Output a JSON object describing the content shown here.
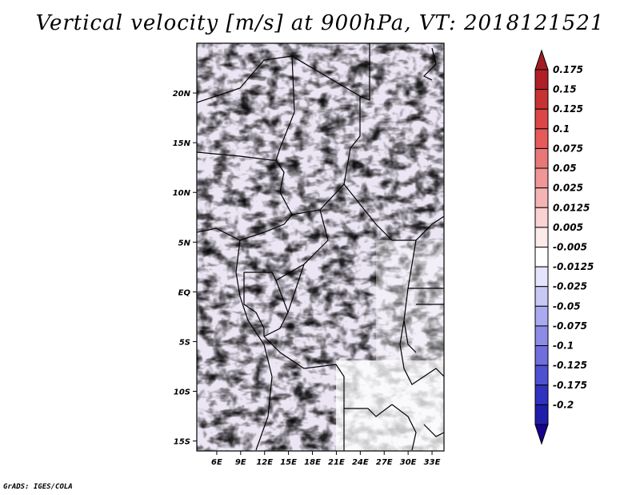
{
  "title": "Vertical velocity [m/s] at 900hPa, VT: 2018121521",
  "footer": "GrADS: IGES/COLA",
  "map": {
    "lat_range": [
      -16,
      25
    ],
    "lon_range": [
      3.5,
      34.5
    ],
    "lat_labels": [
      {
        "value": 20,
        "label": "20N"
      },
      {
        "value": 15,
        "label": "15N"
      },
      {
        "value": 10,
        "label": "10N"
      },
      {
        "value": 5,
        "label": "5N"
      },
      {
        "value": 0,
        "label": "EQ"
      },
      {
        "value": -5,
        "label": "5S"
      },
      {
        "value": -10,
        "label": "10S"
      },
      {
        "value": -15,
        "label": "15S"
      }
    ],
    "lon_labels": [
      {
        "value": 6,
        "label": "6E"
      },
      {
        "value": 9,
        "label": "9E"
      },
      {
        "value": 12,
        "label": "12E"
      },
      {
        "value": 15,
        "label": "15E"
      },
      {
        "value": 18,
        "label": "18E"
      },
      {
        "value": 21,
        "label": "21E"
      },
      {
        "value": 24,
        "label": "24E"
      },
      {
        "value": 27,
        "label": "27E"
      },
      {
        "value": 30,
        "label": "30E"
      },
      {
        "value": 33,
        "label": "33E"
      }
    ]
  },
  "colorbar": {
    "levels": [
      {
        "label": "0.175",
        "color": "#b01e28"
      },
      {
        "label": "0.15",
        "color": "#c83232"
      },
      {
        "label": "0.125",
        "color": "#dc4646"
      },
      {
        "label": "0.1",
        "color": "#e65a5a"
      },
      {
        "label": "0.075",
        "color": "#e87878"
      },
      {
        "label": "0.05",
        "color": "#f09696"
      },
      {
        "label": "0.025",
        "color": "#f5b4b4"
      },
      {
        "label": "0.0125",
        "color": "#fad2d2"
      },
      {
        "label": "0.005",
        "color": "#fdeaea"
      },
      {
        "label": "-0.005",
        "color": "#ffffff"
      },
      {
        "label": "-0.0125",
        "color": "#e4e4fa"
      },
      {
        "label": "-0.025",
        "color": "#c8c8f5"
      },
      {
        "label": "-0.05",
        "color": "#aaaaf0"
      },
      {
        "label": "-0.075",
        "color": "#8c8ce6"
      },
      {
        "label": "-0.1",
        "color": "#6e6edc"
      },
      {
        "label": "-0.125",
        "color": "#5050d2"
      },
      {
        "label": "-0.175",
        "color": "#3232c0"
      },
      {
        "label": "-0.2",
        "color": "#1e1eaa"
      }
    ],
    "top_color": "#a01e23",
    "bottom_color": "#19008c"
  }
}
